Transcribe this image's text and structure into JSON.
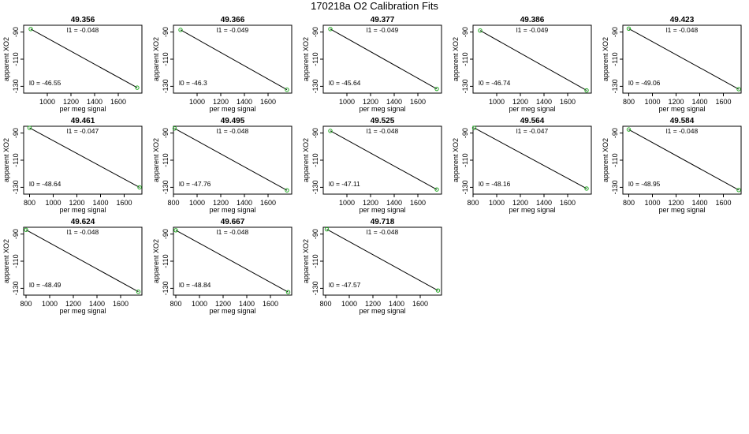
{
  "title": "170218a   O2 Calibration Fits",
  "chart_data": [
    {
      "type": "scatter",
      "title": "49.356",
      "xlabel": "per meg signal",
      "ylabel": "apparent XO2",
      "xlim": [
        800,
        1800
      ],
      "ylim": [
        -135,
        -85
      ],
      "xticks": [
        1000,
        1200,
        1400,
        1600
      ],
      "yticks": [
        -90,
        -110,
        -130
      ],
      "ticks_shown": true,
      "l1_label": "l1 =  -0.048",
      "l0_label": "l0 =  -46.55",
      "l1": -0.048,
      "l0": -46.55,
      "points": [
        {
          "x": 860,
          "y": -87.8
        },
        {
          "x": 1760,
          "y": -131
        }
      ]
    },
    {
      "type": "scatter",
      "title": "49.366",
      "xlabel": "per meg signal",
      "ylabel": "apparent XO2",
      "xlim": [
        800,
        1800
      ],
      "ylim": [
        -135,
        -85
      ],
      "xticks": [
        1000,
        1200,
        1400,
        1600
      ],
      "yticks": [
        -90,
        -110,
        -130
      ],
      "ticks_shown": true,
      "l1_label": "l1 =  -0.049",
      "l0_label": "l0 =  -46.3",
      "l1": -0.049,
      "l0": -46.3,
      "points": [
        {
          "x": 860,
          "y": -88.4
        },
        {
          "x": 1760,
          "y": -132.5
        }
      ]
    },
    {
      "type": "scatter",
      "title": "49.377",
      "xlabel": "per meg signal",
      "ylabel": "apparent XO2",
      "xlim": [
        800,
        1800
      ],
      "ylim": [
        -135,
        -85
      ],
      "xticks": [
        1000,
        1200,
        1400,
        1600
      ],
      "yticks": [
        -90,
        -110,
        -130
      ],
      "ticks_shown": true,
      "l1_label": "l1 =  -0.049",
      "l0_label": "l0 =  -45.64",
      "l1": -0.049,
      "l0": -45.64,
      "points": [
        {
          "x": 860,
          "y": -87.8
        },
        {
          "x": 1760,
          "y": -131.9
        }
      ]
    },
    {
      "type": "scatter",
      "title": "49.386",
      "xlabel": "per meg signal",
      "ylabel": "apparent XO2",
      "xlim": [
        800,
        1800
      ],
      "ylim": [
        -135,
        -85
      ],
      "xticks": [
        1000,
        1200,
        1400,
        1600
      ],
      "yticks": [
        -90,
        -110,
        -130
      ],
      "ticks_shown": true,
      "l1_label": "l1 =  -0.049",
      "l0_label": "l0 =  -46.74",
      "l1": -0.049,
      "l0": -46.74,
      "points": [
        {
          "x": 860,
          "y": -88.9
        },
        {
          "x": 1760,
          "y": -133
        }
      ]
    },
    {
      "type": "scatter",
      "title": "49.423",
      "xlabel": "per meg signal",
      "ylabel": "apparent XO2",
      "xlim": [
        750,
        1750
      ],
      "ylim": [
        -135,
        -85
      ],
      "xticks": [
        800,
        1000,
        1200,
        1400,
        1600
      ],
      "yticks": [
        -90,
        -110,
        -130
      ],
      "ticks_shown": true,
      "l1_label": "l1 =  -0.048",
      "l0_label": "l0 =  -49.06",
      "l1": -0.048,
      "l0": -49.06,
      "points": [
        {
          "x": 800,
          "y": -87.5
        },
        {
          "x": 1730,
          "y": -132.1
        }
      ]
    },
    {
      "type": "scatter",
      "title": "49.461",
      "xlabel": "per meg signal",
      "ylabel": "apparent XO2",
      "xlim": [
        750,
        1750
      ],
      "ylim": [
        -135,
        -85
      ],
      "xticks": [
        800,
        1000,
        1200,
        1400,
        1600
      ],
      "yticks": [
        -90,
        -110,
        -130
      ],
      "ticks_shown": true,
      "l1_label": "l1 =  -0.047",
      "l0_label": "l0 =  -48.64",
      "l1": -0.047,
      "l0": -48.64,
      "points": [
        {
          "x": 800,
          "y": -86.2
        },
        {
          "x": 1730,
          "y": -130
        }
      ]
    },
    {
      "type": "scatter",
      "title": "49.495",
      "xlabel": "per meg signal",
      "ylabel": "apparent XO2",
      "xlim": [
        800,
        1800
      ],
      "ylim": [
        -135,
        -85
      ],
      "xticks": [
        800,
        1000,
        1200,
        1400,
        1600
      ],
      "yticks": [
        -90,
        -110,
        -130
      ],
      "ticks_shown": true,
      "l1_label": "l1 =  -0.048",
      "l0_label": "l0 =  -47.76",
      "l1": -0.048,
      "l0": -47.76,
      "points": [
        {
          "x": 810,
          "y": -86.6
        },
        {
          "x": 1760,
          "y": -132.2
        }
      ]
    },
    {
      "type": "scatter",
      "title": "49.525",
      "xlabel": "per meg signal",
      "ylabel": "apparent XO2",
      "xlim": [
        800,
        1800
      ],
      "ylim": [
        -135,
        -85
      ],
      "xticks": [
        1000,
        1200,
        1400,
        1600
      ],
      "yticks": [
        -90,
        -110,
        -130
      ],
      "ticks_shown": true,
      "l1_label": "l1 =  -0.048",
      "l0_label": "l0 =  -47.11",
      "l1": -0.048,
      "l0": -47.11,
      "points": [
        {
          "x": 860,
          "y": -88.4
        },
        {
          "x": 1760,
          "y": -131.6
        }
      ]
    },
    {
      "type": "scatter",
      "title": "49.564",
      "xlabel": "per meg signal",
      "ylabel": "apparent XO2",
      "xlim": [
        800,
        1800
      ],
      "ylim": [
        -135,
        -85
      ],
      "xticks": [
        800,
        1000,
        1200,
        1400,
        1600
      ],
      "yticks": [
        -90,
        -110,
        -130
      ],
      "ticks_shown": true,
      "l1_label": "l1 =  -0.047",
      "l0_label": "l0 =  -48.16",
      "l1": -0.047,
      "l0": -48.16,
      "points": [
        {
          "x": 810,
          "y": -86.2
        },
        {
          "x": 1760,
          "y": -130.9
        }
      ]
    },
    {
      "type": "scatter",
      "title": "49.584",
      "xlabel": "per meg signal",
      "ylabel": "apparent XO2",
      "xlim": [
        750,
        1750
      ],
      "ylim": [
        -135,
        -85
      ],
      "xticks": [
        800,
        1000,
        1200,
        1400,
        1600
      ],
      "yticks": [
        -90,
        -110,
        -130
      ],
      "ticks_shown": true,
      "l1_label": "l1 =  -0.048",
      "l0_label": "l0 =  -48.95",
      "l1": -0.048,
      "l0": -48.95,
      "points": [
        {
          "x": 800,
          "y": -87.4
        },
        {
          "x": 1730,
          "y": -132
        }
      ]
    },
    {
      "type": "scatter",
      "title": "49.624",
      "xlabel": "per meg signal",
      "ylabel": "apparent XO2",
      "xlim": [
        780,
        1780
      ],
      "ylim": [
        -135,
        -85
      ],
      "xticks": [
        800,
        1000,
        1200,
        1400,
        1600
      ],
      "yticks": [
        -90,
        -110,
        -130
      ],
      "ticks_shown": true,
      "l1_label": "l1 =  -0.048",
      "l0_label": "l0 =  -48.49",
      "l1": -0.048,
      "l0": -48.49,
      "points": [
        {
          "x": 800,
          "y": -86.9
        },
        {
          "x": 1750,
          "y": -132.5
        }
      ]
    },
    {
      "type": "scatter",
      "title": "49.667",
      "xlabel": "per meg signal",
      "ylabel": "apparent XO2",
      "xlim": [
        780,
        1780
      ],
      "ylim": [
        -135,
        -85
      ],
      "xticks": [
        800,
        1000,
        1200,
        1400,
        1600
      ],
      "yticks": [
        -90,
        -110,
        -130
      ],
      "ticks_shown": true,
      "l1_label": "l1 =  -0.048",
      "l0_label": "l0 =  -48.84",
      "l1": -0.048,
      "l0": -48.84,
      "points": [
        {
          "x": 800,
          "y": -87.2
        },
        {
          "x": 1750,
          "y": -132.8
        }
      ]
    },
    {
      "type": "scatter",
      "title": "49.718",
      "xlabel": "per meg signal",
      "ylabel": "apparent XO2",
      "xlim": [
        780,
        1780
      ],
      "ylim": [
        -135,
        -85
      ],
      "xticks": [
        800,
        1000,
        1200,
        1400,
        1600
      ],
      "yticks": [
        -90,
        -110,
        -130
      ],
      "ticks_shown": true,
      "l1_label": "l1 =  -0.048",
      "l0_label": "l0 =  -47.57",
      "l1": -0.048,
      "l0": -47.57,
      "points": [
        {
          "x": 810,
          "y": -86.5
        },
        {
          "x": 1750,
          "y": -131.6
        }
      ]
    }
  ],
  "colors": {
    "points": "#22aa22",
    "axis": "#000000",
    "fit_line": "#000000"
  }
}
